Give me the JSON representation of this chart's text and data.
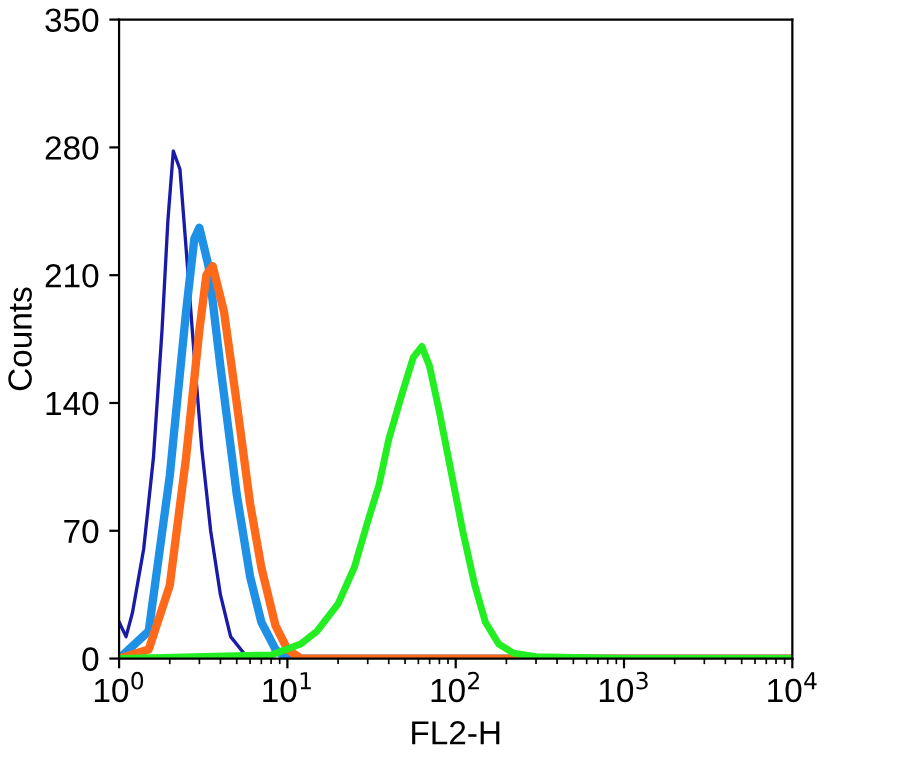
{
  "chart_data": {
    "type": "line",
    "xlabel": "FL2-H",
    "ylabel": "Counts",
    "log": "x",
    "xlim": [
      1,
      10000
    ],
    "xticks": [
      {
        "value": 1,
        "label": "10$^{0}$"
      },
      {
        "value": 10,
        "label": "10$^{1}$"
      },
      {
        "value": 100,
        "label": "10$^{2}$"
      },
      {
        "value": 1000,
        "label": "10$^{3}$"
      },
      {
        "value": 10000,
        "label": "10$^{4}$"
      }
    ],
    "ylim": [
      0,
      350
    ],
    "yticks": [
      0,
      70,
      140,
      210,
      280,
      350
    ],
    "grid": false,
    "series": [
      {
        "color": "#1a1aa8",
        "x": [
          1.0,
          1.1,
          1.2,
          1.4,
          1.6,
          1.8,
          1.95,
          2.1,
          2.3,
          2.5,
          2.8,
          3.1,
          3.5,
          4.0,
          4.6,
          5.5,
          6.5
        ],
        "values": [
          20,
          12,
          25,
          60,
          110,
          180,
          240,
          278,
          268,
          225,
          165,
          115,
          70,
          35,
          12,
          3,
          0
        ]
      },
      {
        "color": "#1e90e6",
        "x": [
          1.0,
          1.5,
          2.0,
          2.5,
          2.8,
          3.0,
          3.4,
          4.0,
          5.0,
          6.0,
          7.0,
          8.5,
          10,
          100,
          10000
        ],
        "values": [
          0,
          15,
          100,
          190,
          230,
          236,
          215,
          160,
          90,
          45,
          20,
          5,
          0,
          0,
          0
        ]
      },
      {
        "color": "#ff6a1a",
        "x": [
          1.0,
          1.5,
          2.0,
          2.5,
          3.0,
          3.3,
          3.6,
          4.2,
          5.0,
          6.0,
          7.0,
          8.5,
          10,
          12,
          100,
          10000
        ],
        "values": [
          0,
          5,
          40,
          110,
          180,
          210,
          215,
          190,
          140,
          85,
          50,
          18,
          5,
          0,
          0,
          0
        ]
      },
      {
        "color": "#22ee22",
        "x": [
          1.0,
          8,
          12,
          15,
          20,
          25,
          30,
          35,
          40,
          48,
          56,
          63,
          70,
          80,
          95,
          110,
          130,
          150,
          180,
          220,
          300,
          1000,
          10000
        ],
        "values": [
          0,
          2,
          8,
          15,
          30,
          50,
          75,
          95,
          120,
          145,
          165,
          171,
          160,
          135,
          100,
          70,
          40,
          20,
          8,
          3,
          1,
          0,
          0
        ]
      }
    ]
  }
}
